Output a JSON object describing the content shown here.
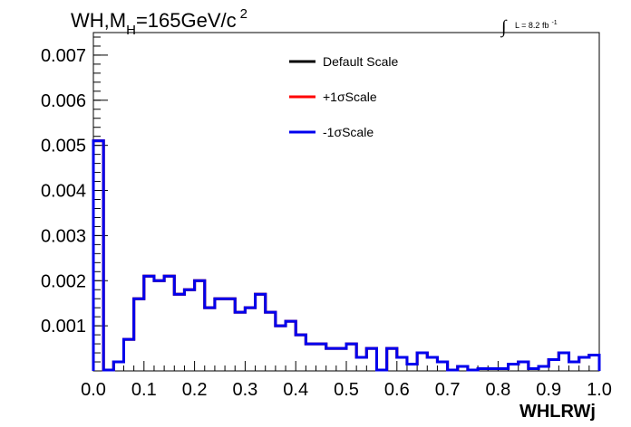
{
  "chart_data": {
    "type": "line",
    "style": "step-histogram",
    "title": {
      "main": "WH,M",
      "sub": "H",
      "rest": "=165GeV/c",
      "sup": "2"
    },
    "luminosity": {
      "integral": "∫",
      "label": "L = 8.2 fb",
      "sup": "-1"
    },
    "xlabel": "WHLRWj",
    "ylabel": "",
    "xlim": [
      0.0,
      1.0
    ],
    "ylim": [
      0.0,
      0.0075
    ],
    "x_ticks": [
      "0.0",
      "0.1",
      "0.2",
      "0.3",
      "0.4",
      "0.5",
      "0.6",
      "0.7",
      "0.8",
      "0.9",
      "1.0"
    ],
    "y_ticks": [
      "0.001",
      "0.002",
      "0.003",
      "0.004",
      "0.005",
      "0.006",
      "0.007"
    ],
    "bin_edges": [
      0.0,
      0.02,
      0.04,
      0.06,
      0.08,
      0.1,
      0.12,
      0.14,
      0.16,
      0.18,
      0.2,
      0.22,
      0.24,
      0.26,
      0.28,
      0.3,
      0.32,
      0.34,
      0.36,
      0.38,
      0.4,
      0.42,
      0.44,
      0.46,
      0.48,
      0.5,
      0.52,
      0.54,
      0.56,
      0.58,
      0.6,
      0.62,
      0.64,
      0.66,
      0.68,
      0.7,
      0.72,
      0.74,
      0.76,
      0.78,
      0.8,
      0.82,
      0.84,
      0.86,
      0.88,
      0.9,
      0.92,
      0.94,
      0.96,
      0.98,
      1.0
    ],
    "series": [
      {
        "name": "Default Scale",
        "color": "#000000",
        "values": [
          0.0051,
          2e-05,
          0.0002,
          0.0007,
          0.0016,
          0.0021,
          0.002,
          0.0021,
          0.0017,
          0.0018,
          0.002,
          0.0014,
          0.0016,
          0.0016,
          0.0013,
          0.0014,
          0.0017,
          0.0013,
          0.001,
          0.0011,
          0.0008,
          0.0006,
          0.0006,
          0.0005,
          0.0005,
          0.0006,
          0.0003,
          0.0005,
          2e-05,
          0.0005,
          0.0003,
          0.00015,
          0.0004,
          0.0003,
          0.0002,
          2e-05,
          0.0001,
          2e-05,
          5e-05,
          5e-05,
          5e-05,
          0.00015,
          0.0002,
          5e-05,
          0.0001,
          0.00025,
          0.0004,
          0.0002,
          0.0003,
          0.00035
        ]
      },
      {
        "name": "+1σScale",
        "color": "#ff0000",
        "values": [
          0.0051,
          2e-05,
          0.0002,
          0.0007,
          0.0016,
          0.0021,
          0.002,
          0.0021,
          0.0017,
          0.0018,
          0.002,
          0.0014,
          0.0016,
          0.0016,
          0.0013,
          0.0014,
          0.0017,
          0.0013,
          0.001,
          0.0011,
          0.0008,
          0.0006,
          0.0006,
          0.0005,
          0.0005,
          0.0006,
          0.0003,
          0.0005,
          2e-05,
          0.0005,
          0.0003,
          0.00015,
          0.0004,
          0.0003,
          0.0002,
          2e-05,
          0.0001,
          2e-05,
          5e-05,
          5e-05,
          5e-05,
          0.00015,
          0.0002,
          5e-05,
          0.0001,
          0.00025,
          0.0004,
          0.0002,
          0.0003,
          0.00035
        ]
      },
      {
        "name": "-1σScale",
        "color": "#0000ee",
        "values": [
          0.0051,
          2e-05,
          0.0002,
          0.0007,
          0.0016,
          0.0021,
          0.002,
          0.0021,
          0.0017,
          0.0018,
          0.002,
          0.0014,
          0.0016,
          0.0016,
          0.0013,
          0.0014,
          0.0017,
          0.0013,
          0.001,
          0.0011,
          0.0008,
          0.0006,
          0.0006,
          0.0005,
          0.0005,
          0.0006,
          0.0003,
          0.0005,
          2e-05,
          0.0005,
          0.0003,
          0.00015,
          0.0004,
          0.0003,
          0.0002,
          2e-05,
          0.0001,
          2e-05,
          5e-05,
          5e-05,
          5e-05,
          0.00015,
          0.0002,
          5e-05,
          0.0001,
          0.00025,
          0.0004,
          0.0002,
          0.0003,
          0.00035
        ]
      }
    ],
    "legend_position": "top-center",
    "grid": false
  }
}
